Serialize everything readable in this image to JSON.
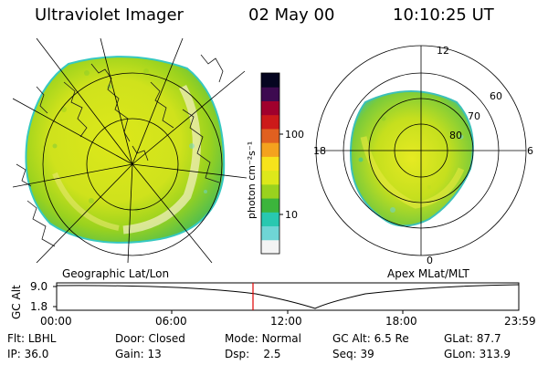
{
  "header": {
    "title": "Ultraviolet Imager",
    "date": "02 May 00",
    "time": "10:10:25 UT"
  },
  "geo_panel": {
    "label": "Geographic Lat/Lon"
  },
  "apex_panel": {
    "label": "Apex MLat/MLT",
    "mlt_labels": [
      "12",
      "18",
      "6",
      "0"
    ],
    "mlat_labels": [
      "60",
      "70",
      "80"
    ]
  },
  "colorbar": {
    "unit_label": "photon cm⁻²s⁻¹",
    "ticks": [
      "100",
      "10"
    ],
    "scale": "log",
    "colors": [
      "#f4f4f4",
      "#6fd5d5",
      "#28c8b0",
      "#3cb53c",
      "#9ad21e",
      "#dde81a",
      "#f7e31b",
      "#f4a21e",
      "#e06020",
      "#cc1a1a",
      "#a0002d",
      "#3d0a50",
      "#050520"
    ]
  },
  "altitude_plot": {
    "axis_label": "GC Alt",
    "y_ticks": [
      "9.0",
      "1.8"
    ],
    "x_ticks": [
      "00:00",
      "06:00",
      "12:00",
      "18:00",
      "23:59"
    ],
    "marker_color": "#e00000"
  },
  "info": {
    "row1": [
      {
        "key": "Flt:",
        "value": "LBHL"
      },
      {
        "key": "Door:",
        "value": "Closed"
      },
      {
        "key": "Mode:",
        "value": "Normal"
      },
      {
        "key": "GC Alt:",
        "value": "6.5 Re"
      },
      {
        "key": "GLat:",
        "value": "87.7"
      }
    ],
    "row2": [
      {
        "key": "IP:",
        "value": "36.0"
      },
      {
        "key": "Gain:",
        "value": "13"
      },
      {
        "key": "Dsp:",
        "value": "2.5"
      },
      {
        "key": "Seq:",
        "value": "39"
      },
      {
        "key": "GLon:",
        "value": "313.9"
      }
    ]
  }
}
